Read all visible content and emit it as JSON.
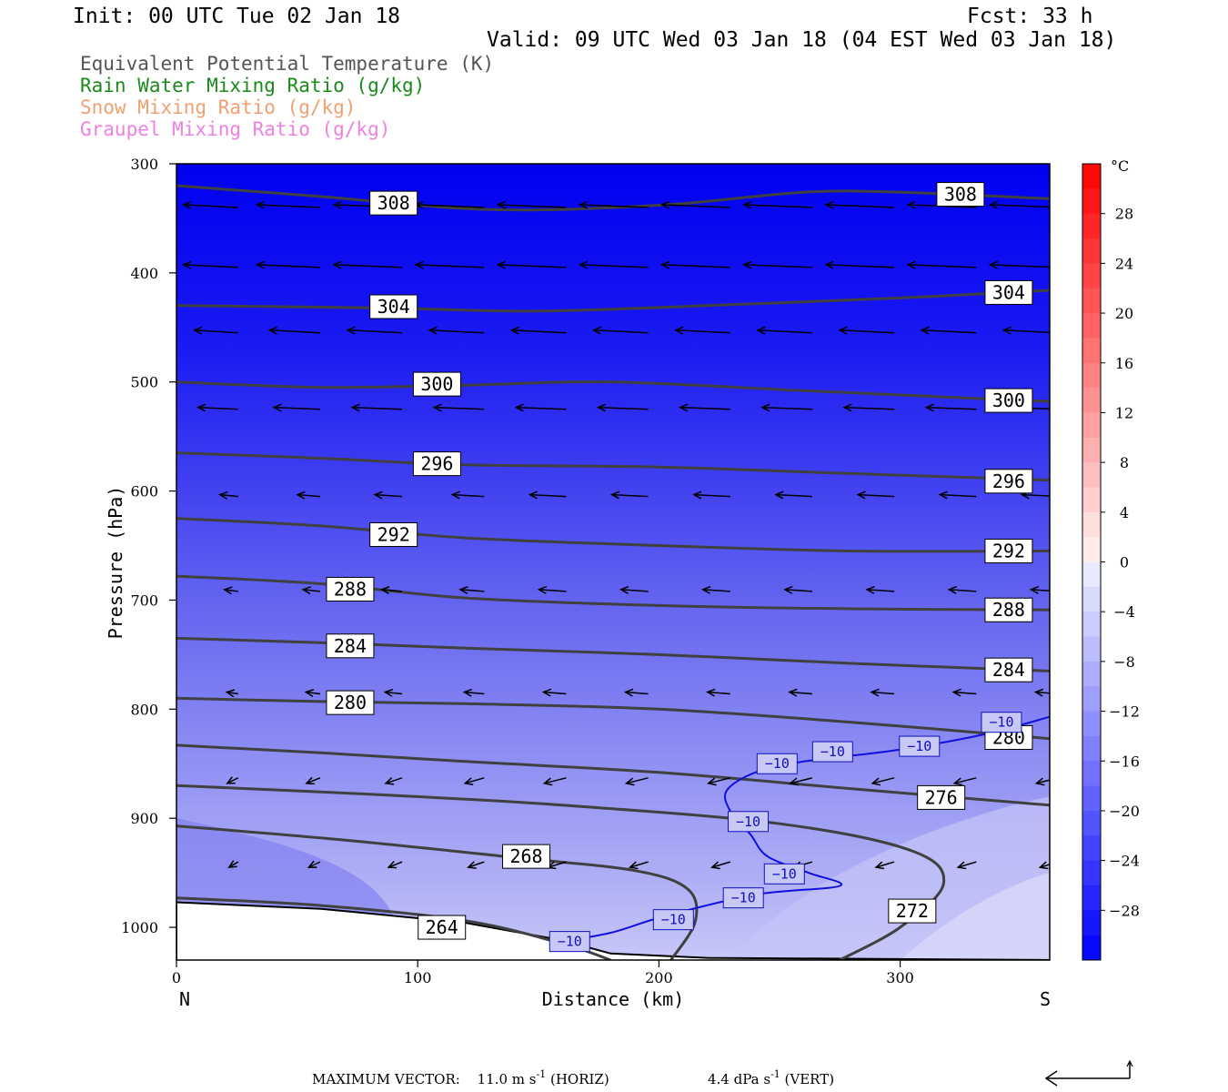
{
  "header": {
    "init": "Init: 00 UTC Tue 02 Jan 18",
    "fcst": "Fcst:   33 h",
    "valid": "Valid: 09 UTC Wed 03 Jan 18 (04 EST Wed 03 Jan 18)"
  },
  "legend": [
    {
      "label": "Equivalent Potential Temperature (K)",
      "color": "#555555"
    },
    {
      "label": "Rain Water Mixing Ratio (g/kg)",
      "color": "#1a8a1a"
    },
    {
      "label": "Snow Mixing Ratio (g/kg)",
      "color": "#f0a070"
    },
    {
      "label": "Graupel Mixing Ratio (g/kg)",
      "color": "#f080e0"
    }
  ],
  "chart_data": {
    "type": "cross-section",
    "xlabel": "Distance (km)",
    "ylabel": "Pressure (hPa)",
    "xlim": [
      0,
      362
    ],
    "ylim": [
      1030,
      300
    ],
    "x_ticks": [
      0,
      100,
      200,
      300
    ],
    "y_ticks": [
      300,
      400,
      500,
      600,
      700,
      800,
      900,
      1000
    ],
    "x_end_labels": {
      "left": "N",
      "right": "S"
    },
    "colorbar": {
      "unit": "°C",
      "levels": [
        28,
        24,
        20,
        16,
        12,
        8,
        4,
        0,
        -4,
        -8,
        -12,
        -16,
        -20,
        -24,
        -28
      ],
      "range": [
        -32,
        32
      ]
    },
    "theta_e_contours": [
      {
        "value": 308,
        "points": [
          [
            0,
            320
          ],
          [
            60,
            330
          ],
          [
            130,
            342
          ],
          [
            200,
            338
          ],
          [
            260,
            326
          ],
          [
            300,
            326
          ],
          [
            362,
            332
          ]
        ],
        "labels": [
          [
            90,
            336
          ],
          [
            325,
            328
          ]
        ]
      },
      {
        "value": 304,
        "points": [
          [
            0,
            430
          ],
          [
            80,
            432
          ],
          [
            150,
            435
          ],
          [
            220,
            430
          ],
          [
            300,
            423
          ],
          [
            362,
            416
          ]
        ],
        "labels": [
          [
            90,
            431
          ],
          [
            345,
            418
          ]
        ]
      },
      {
        "value": 300,
        "points": [
          [
            0,
            500
          ],
          [
            60,
            505
          ],
          [
            120,
            503
          ],
          [
            180,
            500
          ],
          [
            260,
            508
          ],
          [
            362,
            518
          ]
        ],
        "labels": [
          [
            108,
            502
          ],
          [
            345,
            517
          ]
        ]
      },
      {
        "value": 296,
        "points": [
          [
            0,
            565
          ],
          [
            60,
            570
          ],
          [
            120,
            576
          ],
          [
            200,
            578
          ],
          [
            280,
            584
          ],
          [
            362,
            590
          ]
        ],
        "labels": [
          [
            108,
            575
          ],
          [
            345,
            591
          ]
        ]
      },
      {
        "value": 292,
        "points": [
          [
            0,
            625
          ],
          [
            60,
            632
          ],
          [
            120,
            643
          ],
          [
            200,
            650
          ],
          [
            280,
            655
          ],
          [
            362,
            655
          ]
        ],
        "labels": [
          [
            90,
            640
          ],
          [
            345,
            655
          ]
        ]
      },
      {
        "value": 288,
        "points": [
          [
            0,
            678
          ],
          [
            60,
            685
          ],
          [
            120,
            698
          ],
          [
            200,
            705
          ],
          [
            280,
            708
          ],
          [
            362,
            709
          ]
        ],
        "labels": [
          [
            72,
            690
          ],
          [
            345,
            709
          ]
        ]
      },
      {
        "value": 284,
        "points": [
          [
            0,
            735
          ],
          [
            60,
            739
          ],
          [
            120,
            744
          ],
          [
            200,
            750
          ],
          [
            280,
            758
          ],
          [
            362,
            765
          ]
        ],
        "labels": [
          [
            72,
            742
          ],
          [
            345,
            764
          ]
        ]
      },
      {
        "value": 280,
        "points": [
          [
            0,
            790
          ],
          [
            60,
            793
          ],
          [
            120,
            795
          ],
          [
            200,
            800
          ],
          [
            280,
            812
          ],
          [
            362,
            827
          ]
        ],
        "labels": [
          [
            72,
            794
          ],
          [
            345,
            826
          ]
        ]
      },
      {
        "value": 276,
        "points": [
          [
            0,
            833
          ],
          [
            60,
            840
          ],
          [
            120,
            848
          ],
          [
            200,
            858
          ],
          [
            280,
            873
          ],
          [
            362,
            888
          ]
        ],
        "labels": [
          [
            317,
            881
          ]
        ]
      },
      {
        "value": 272,
        "points": [
          [
            0,
            870
          ],
          [
            80,
            878
          ],
          [
            160,
            888
          ],
          [
            250,
            905
          ],
          [
            305,
            930
          ],
          [
            318,
            960
          ],
          [
            300,
            1000
          ],
          [
            275,
            1030
          ]
        ],
        "labels": [
          [
            305,
            985
          ]
        ]
      },
      {
        "value": 268,
        "points": [
          [
            0,
            907
          ],
          [
            70,
            920
          ],
          [
            140,
            936
          ],
          [
            190,
            948
          ],
          [
            212,
            965
          ],
          [
            215,
            995
          ],
          [
            205,
            1030
          ]
        ],
        "labels": [
          [
            145,
            935
          ]
        ]
      },
      {
        "value": 264,
        "points": [
          [
            0,
            973
          ],
          [
            60,
            980
          ],
          [
            120,
            994
          ],
          [
            160,
            1015
          ],
          [
            180,
            1030
          ]
        ],
        "labels": [
          [
            110,
            1000
          ]
        ]
      }
    ],
    "temperature_contours": [
      {
        "value": -10,
        "points": [
          [
            157,
            1014
          ],
          [
            180,
            1005
          ],
          [
            202,
            990
          ],
          [
            240,
            970
          ],
          [
            275,
            962
          ],
          [
            262,
            950
          ],
          [
            245,
            935
          ],
          [
            238,
            915
          ],
          [
            230,
            895
          ],
          [
            228,
            875
          ],
          [
            240,
            858
          ],
          [
            260,
            848
          ],
          [
            300,
            837
          ],
          [
            335,
            823
          ],
          [
            362,
            807
          ]
        ],
        "labels": [
          [
            163,
            1013
          ],
          [
            206,
            993
          ],
          [
            235,
            973
          ],
          [
            237,
            903
          ],
          [
            252,
            951
          ],
          [
            249,
            850
          ],
          [
            272,
            839
          ],
          [
            308,
            834
          ],
          [
            342,
            812
          ]
        ]
      }
    ],
    "wind_vectors_note": "Northerly-component circulation vectors shown as arrows; max vector 11.0 m s-1 horizontal, 4.4 dPa s-1 vertical"
  },
  "footer": {
    "max_vector_label": "MAXIMUM VECTOR:",
    "horiz": "11.0 m s",
    "horiz_exp": "-1",
    "horiz_suffix": " (HORIZ)",
    "vert": "4.4 dPa s",
    "vert_exp": "-1",
    "vert_suffix": " (VERT)"
  }
}
